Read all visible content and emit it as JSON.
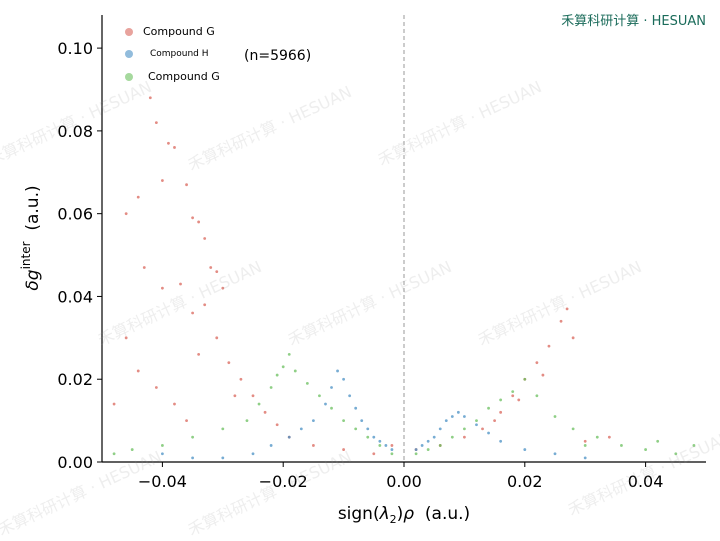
{
  "brand": "禾算科研计算 · HESUAN",
  "watermark": "禾算科研计算 · HESUAN",
  "chart_data": {
    "type": "scatter",
    "xlabel_parts": [
      "sign(",
      "λ",
      "2",
      ")",
      "ρ",
      "  (a.u.)"
    ],
    "ylabel_parts": [
      "δg",
      "inter",
      "  (a.u.)"
    ],
    "xlim": [
      -0.05,
      0.05
    ],
    "ylim": [
      0.0,
      0.108
    ],
    "xticks": [
      -0.04,
      -0.02,
      0.0,
      0.02,
      0.04
    ],
    "xtick_labels": [
      "−0.04",
      "−0.02",
      "0.00",
      "0.02",
      "0.04"
    ],
    "yticks": [
      0.0,
      0.02,
      0.04,
      0.06,
      0.08,
      0.1
    ],
    "ytick_labels": [
      "0.00",
      "0.02",
      "0.04",
      "0.06",
      "0.08",
      "0.10"
    ],
    "vline_x": 0.0,
    "grid": false,
    "legend_position": "top-left",
    "annotation": "(n=5966)",
    "series": [
      {
        "name": "Compound G",
        "color": "#d9655b",
        "points": [
          [
            -0.046,
            0.06
          ],
          [
            -0.044,
            0.064
          ],
          [
            -0.042,
            0.088
          ],
          [
            -0.041,
            0.082
          ],
          [
            -0.04,
            0.068
          ],
          [
            -0.039,
            0.077
          ],
          [
            -0.038,
            0.076
          ],
          [
            -0.036,
            0.067
          ],
          [
            -0.035,
            0.059
          ],
          [
            -0.034,
            0.058
          ],
          [
            -0.033,
            0.054
          ],
          [
            -0.032,
            0.047
          ],
          [
            -0.031,
            0.046
          ],
          [
            -0.03,
            0.042
          ],
          [
            -0.043,
            0.047
          ],
          [
            -0.04,
            0.042
          ],
          [
            -0.037,
            0.043
          ],
          [
            -0.035,
            0.036
          ],
          [
            -0.033,
            0.038
          ],
          [
            -0.031,
            0.03
          ],
          [
            -0.029,
            0.024
          ],
          [
            -0.027,
            0.02
          ],
          [
            -0.025,
            0.016
          ],
          [
            -0.023,
            0.012
          ],
          [
            -0.021,
            0.009
          ],
          [
            -0.044,
            0.022
          ],
          [
            -0.041,
            0.018
          ],
          [
            -0.038,
            0.014
          ],
          [
            -0.036,
            0.01
          ],
          [
            -0.048,
            0.014
          ],
          [
            -0.046,
            0.03
          ],
          [
            -0.034,
            0.026
          ],
          [
            -0.028,
            0.016
          ],
          [
            -0.019,
            0.006
          ],
          [
            -0.015,
            0.004
          ],
          [
            -0.01,
            0.003
          ],
          [
            -0.005,
            0.002
          ],
          [
            -0.002,
            0.004
          ],
          [
            0.002,
            0.003
          ],
          [
            0.006,
            0.004
          ],
          [
            0.01,
            0.006
          ],
          [
            0.013,
            0.008
          ],
          [
            0.016,
            0.012
          ],
          [
            0.018,
            0.016
          ],
          [
            0.02,
            0.02
          ],
          [
            0.022,
            0.024
          ],
          [
            0.024,
            0.028
          ],
          [
            0.026,
            0.034
          ],
          [
            0.027,
            0.037
          ],
          [
            0.028,
            0.03
          ],
          [
            0.023,
            0.021
          ],
          [
            0.019,
            0.015
          ],
          [
            0.015,
            0.01
          ],
          [
            0.03,
            0.005
          ],
          [
            0.034,
            0.006
          ]
        ]
      },
      {
        "name": "Compound H",
        "color": "#4a90c4",
        "points": [
          [
            -0.025,
            0.002
          ],
          [
            -0.022,
            0.004
          ],
          [
            -0.019,
            0.006
          ],
          [
            -0.017,
            0.008
          ],
          [
            -0.015,
            0.01
          ],
          [
            -0.013,
            0.014
          ],
          [
            -0.012,
            0.018
          ],
          [
            -0.011,
            0.022
          ],
          [
            -0.01,
            0.02
          ],
          [
            -0.009,
            0.016
          ],
          [
            -0.008,
            0.013
          ],
          [
            -0.007,
            0.01
          ],
          [
            -0.006,
            0.008
          ],
          [
            -0.005,
            0.006
          ],
          [
            -0.004,
            0.005
          ],
          [
            -0.003,
            0.004
          ],
          [
            -0.002,
            0.003
          ],
          [
            0.002,
            0.003
          ],
          [
            0.003,
            0.004
          ],
          [
            0.004,
            0.005
          ],
          [
            0.005,
            0.006
          ],
          [
            0.006,
            0.008
          ],
          [
            0.007,
            0.01
          ],
          [
            0.008,
            0.011
          ],
          [
            0.009,
            0.012
          ],
          [
            0.01,
            0.011
          ],
          [
            0.012,
            0.009
          ],
          [
            0.014,
            0.007
          ],
          [
            0.016,
            0.005
          ],
          [
            0.02,
            0.003
          ],
          [
            -0.03,
            0.001
          ],
          [
            -0.035,
            0.001
          ],
          [
            -0.04,
            0.002
          ],
          [
            0.025,
            0.002
          ],
          [
            0.03,
            0.001
          ]
        ]
      },
      {
        "name": "Compound G",
        "color": "#6abf5e",
        "points": [
          [
            -0.048,
            0.002
          ],
          [
            -0.045,
            0.003
          ],
          [
            -0.04,
            0.004
          ],
          [
            -0.035,
            0.006
          ],
          [
            -0.03,
            0.008
          ],
          [
            -0.026,
            0.01
          ],
          [
            -0.024,
            0.014
          ],
          [
            -0.022,
            0.018
          ],
          [
            -0.021,
            0.021
          ],
          [
            -0.02,
            0.023
          ],
          [
            -0.019,
            0.026
          ],
          [
            -0.018,
            0.022
          ],
          [
            -0.016,
            0.019
          ],
          [
            -0.014,
            0.016
          ],
          [
            -0.012,
            0.013
          ],
          [
            -0.01,
            0.01
          ],
          [
            -0.008,
            0.008
          ],
          [
            -0.006,
            0.006
          ],
          [
            -0.004,
            0.004
          ],
          [
            -0.002,
            0.002
          ],
          [
            0.002,
            0.002
          ],
          [
            0.004,
            0.003
          ],
          [
            0.006,
            0.004
          ],
          [
            0.008,
            0.006
          ],
          [
            0.01,
            0.008
          ],
          [
            0.012,
            0.01
          ],
          [
            0.014,
            0.013
          ],
          [
            0.016,
            0.015
          ],
          [
            0.018,
            0.017
          ],
          [
            0.02,
            0.02
          ],
          [
            0.022,
            0.016
          ],
          [
            0.025,
            0.011
          ],
          [
            0.028,
            0.008
          ],
          [
            0.032,
            0.006
          ],
          [
            0.036,
            0.004
          ],
          [
            0.04,
            0.003
          ],
          [
            0.045,
            0.002
          ],
          [
            0.048,
            0.004
          ],
          [
            0.042,
            0.005
          ],
          [
            0.03,
            0.004
          ]
        ]
      }
    ]
  }
}
